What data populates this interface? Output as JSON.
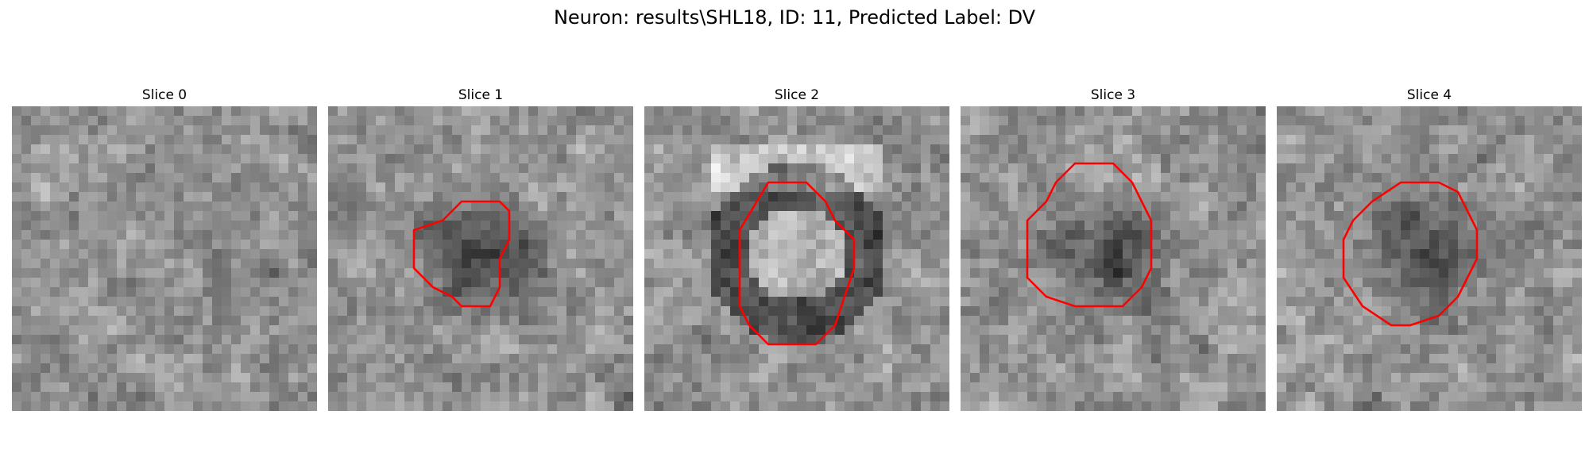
{
  "figure": {
    "title": "Neuron: results\\SHL18, ID: 11, Predicted Label: DV",
    "contour_color": "#ff0000",
    "colormap": "gray",
    "panels": [
      {
        "title": "Slice 0",
        "has_contour": false,
        "blob": "none",
        "seed": 3
      },
      {
        "title": "Slice 1",
        "has_contour": true,
        "blob": "dark",
        "seed": 7
      },
      {
        "title": "Slice 2",
        "has_contour": true,
        "blob": "ring",
        "seed": 11
      },
      {
        "title": "Slice 3",
        "has_contour": true,
        "blob": "dark",
        "seed": 17
      },
      {
        "title": "Slice 4",
        "has_contour": true,
        "blob": "dark",
        "seed": 23
      }
    ]
  }
}
